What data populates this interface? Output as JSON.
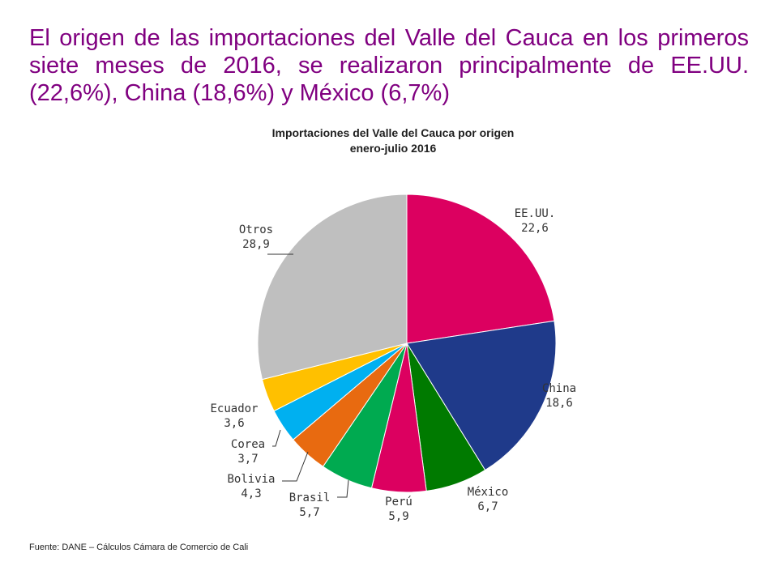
{
  "headline": "El origen de las importaciones del Valle del Cauca en los primeros siete meses de 2016, se realizaron principalmente de EE.UU. (22,6%), China (18,6%) y México (6,7%)",
  "source": "Fuente: DANE – Cálculos Cámara de Comercio de Cali",
  "chart_data": {
    "type": "pie",
    "title": "Importaciones del Valle del Cauca por origen",
    "subtitle": "enero-julio 2016",
    "slices": [
      {
        "name": "EE.UU.",
        "value": 22.6,
        "value_label": "22,6",
        "color": "#DC0060"
      },
      {
        "name": "China",
        "value": 18.6,
        "value_label": "18,6",
        "color": "#1F3A8A"
      },
      {
        "name": "México",
        "value": 6.7,
        "value_label": "6,7",
        "color": "#007A00"
      },
      {
        "name": "Perú",
        "value": 5.9,
        "value_label": "5,9",
        "color": "#DC0060"
      },
      {
        "name": "Brasil",
        "value": 5.7,
        "value_label": "5,7",
        "color": "#00AA50"
      },
      {
        "name": "Bolivia",
        "value": 4.3,
        "value_label": "4,3",
        "color": "#E86A10"
      },
      {
        "name": "Corea",
        "value": 3.7,
        "value_label": "3,7",
        "color": "#00B0F0"
      },
      {
        "name": "Ecuador",
        "value": 3.6,
        "value_label": "3,6",
        "color": "#FFC000"
      },
      {
        "name": "Otros",
        "value": 28.9,
        "value_label": "28,9",
        "color": "#BFBFBF"
      }
    ]
  }
}
